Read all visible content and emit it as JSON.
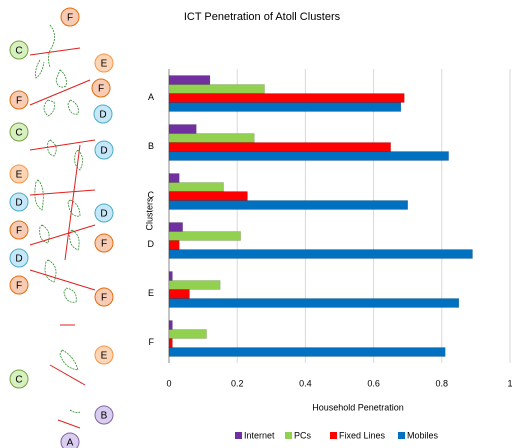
{
  "chart_data": {
    "type": "hbar",
    "title": "ICT Penetration of Atoll Clusters",
    "xlabel": "Household Penetration",
    "ylabel": "Clusters",
    "categories": [
      "A",
      "B",
      "C",
      "D",
      "E",
      "F"
    ],
    "series": [
      {
        "name": "Internet",
        "color": "#7030a0",
        "values": [
          0.12,
          0.08,
          0.03,
          0.04,
          0.01,
          0.01
        ]
      },
      {
        "name": "PCs",
        "color": "#92d050",
        "values": [
          0.28,
          0.25,
          0.16,
          0.21,
          0.15,
          0.11
        ]
      },
      {
        "name": "Fixed Lines",
        "color": "#ff0000",
        "values": [
          0.69,
          0.65,
          0.23,
          0.03,
          0.06,
          0.01
        ]
      },
      {
        "name": "Mobiles",
        "color": "#0070c0",
        "values": [
          0.68,
          0.82,
          0.7,
          0.89,
          0.85,
          0.81
        ]
      }
    ],
    "xlim": [
      0,
      1
    ],
    "xticks": [
      0,
      0.2,
      0.4,
      0.6,
      0.8,
      1
    ],
    "grid": true,
    "legend": "bottom"
  },
  "map": {
    "markers": [
      "F",
      "C",
      "E",
      "F",
      "F",
      "D",
      "C",
      "D",
      "E",
      "D",
      "D",
      "F",
      "F",
      "D",
      "F",
      "F",
      "E",
      "C",
      "B",
      "A"
    ]
  }
}
